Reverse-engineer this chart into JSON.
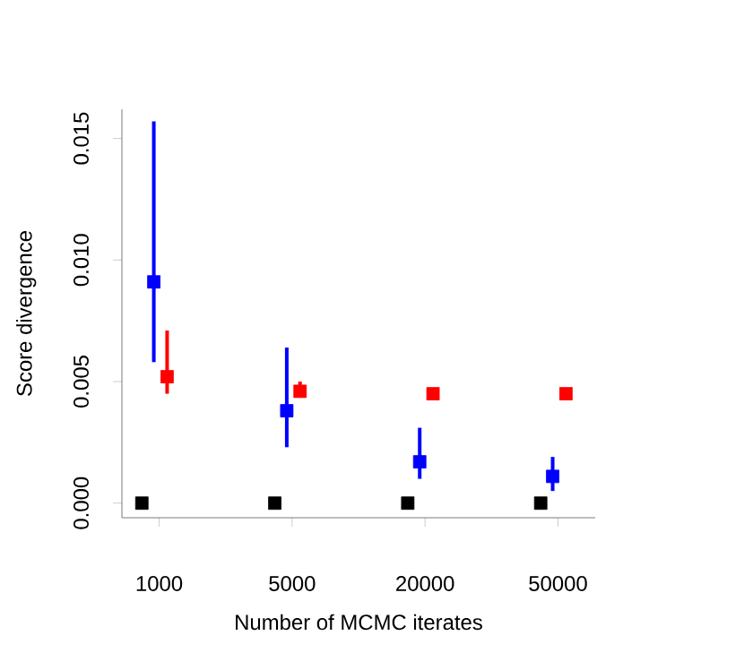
{
  "chart_data": {
    "type": "scatter",
    "xlabel": "Number of MCMC iterates",
    "ylabel": "Score divergence",
    "categories": [
      "1000",
      "5000",
      "20000",
      "50000"
    ],
    "ylim": [
      -0.0006,
      0.0162
    ],
    "yticks": [
      {
        "value": 0,
        "label": "0.000"
      },
      {
        "value": 0.005,
        "label": "0.005"
      },
      {
        "value": 0.01,
        "label": "0.010"
      },
      {
        "value": 0.015,
        "label": "0.015"
      }
    ],
    "marker": "square",
    "series": [
      {
        "color": "#000000",
        "values": [
          0,
          0,
          0,
          0
        ]
      },
      {
        "color": "#0000ff",
        "values": [
          0.0091,
          0.0038,
          0.0017,
          0.0011
        ],
        "errors": [
          [
            0.0058,
            0.0157
          ],
          [
            0.0023,
            0.0064
          ],
          [
            0.001,
            0.0031
          ],
          [
            0.0005,
            0.0019
          ]
        ]
      },
      {
        "color": "#ff0000",
        "values": [
          0.0052,
          0.0046,
          0.0045,
          0.0045
        ],
        "errors": [
          [
            0.0045,
            0.0071
          ],
          [
            0.0044,
            0.005
          ],
          null,
          null
        ]
      }
    ]
  }
}
